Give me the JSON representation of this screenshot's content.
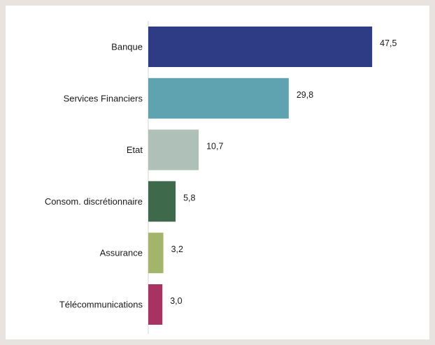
{
  "chart_data": {
    "type": "bar",
    "orientation": "horizontal",
    "title": "",
    "xlabel": "",
    "ylabel": "",
    "categories": [
      "Banque",
      "Services Financiers",
      "Etat",
      "Consom. discrétionnaire",
      "Assurance",
      "Télécommunications"
    ],
    "values": [
      47.5,
      29.8,
      10.7,
      5.8,
      3.2,
      3.0
    ],
    "value_labels": [
      "47,5",
      "29,8",
      "10,7",
      "5,8",
      "3,2",
      "3,0"
    ],
    "colors": [
      "#2e3c85",
      "#5fa3b0",
      "#aec0b7",
      "#3e6a4b",
      "#a4b46a",
      "#a83262"
    ],
    "xlim": [
      0,
      50
    ],
    "grid": false,
    "legend": "none"
  }
}
